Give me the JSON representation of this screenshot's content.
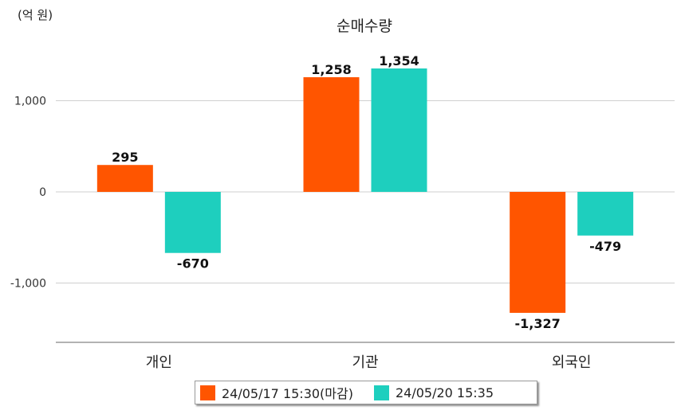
{
  "chart_data": {
    "type": "bar",
    "title": "순매수량",
    "unit_label": "(억 원)",
    "categories": [
      "개인",
      "기관",
      "외국인"
    ],
    "series": [
      {
        "name": "24/05/17 15:30(마감)",
        "color": "#ff5500",
        "values": [
          295,
          1258,
          -1327
        ],
        "value_labels": [
          "295",
          "1,258",
          "-1,327"
        ]
      },
      {
        "name": "24/05/20 15:35",
        "color": "#1ecfbe",
        "values": [
          -670,
          1354,
          -479
        ],
        "value_labels": [
          "-670",
          "1,354",
          "-479"
        ]
      }
    ],
    "y_ticks": [
      1000,
      0,
      -1000
    ],
    "y_tick_labels": [
      "1,000",
      "0",
      "-1,000"
    ],
    "ylim": [
      -1650,
      1650
    ],
    "grid": true,
    "legend_position": "bottom"
  }
}
